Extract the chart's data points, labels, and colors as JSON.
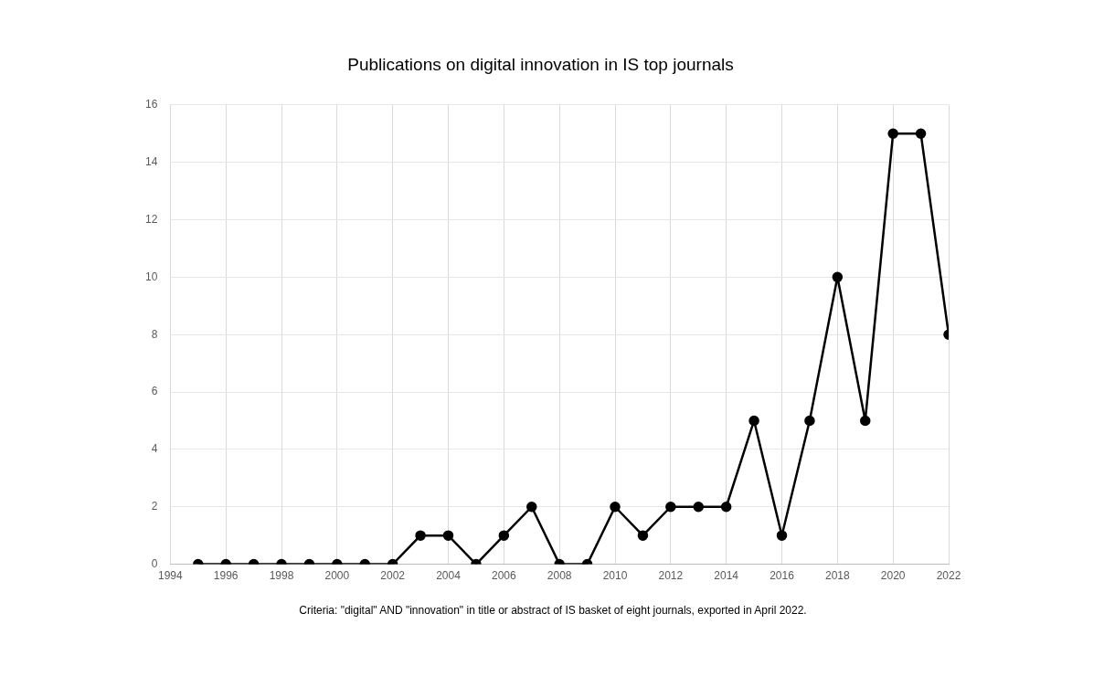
{
  "chart_data": {
    "type": "line",
    "title": "Publications on digital innovation in IS top journals",
    "x": [
      1995,
      1996,
      1997,
      1998,
      1999,
      2000,
      2001,
      2002,
      2003,
      2004,
      2005,
      2006,
      2007,
      2008,
      2009,
      2010,
      2011,
      2012,
      2013,
      2014,
      2015,
      2016,
      2017,
      2018,
      2019,
      2020,
      2021,
      2022
    ],
    "series": [
      {
        "color": "#000000",
        "values": [
          0,
          0,
          0,
          0,
          0,
          0,
          0,
          0,
          1,
          1,
          0,
          1,
          2,
          0,
          0,
          2,
          1,
          2,
          2,
          2,
          5,
          1,
          5,
          10,
          5,
          15,
          15,
          8
        ]
      }
    ],
    "xlim": [
      1994,
      2022
    ],
    "xticks": [
      1994,
      1996,
      1998,
      2000,
      2002,
      2004,
      2006,
      2008,
      2010,
      2012,
      2014,
      2016,
      2018,
      2020,
      2022
    ],
    "ylim": [
      0,
      16
    ],
    "yticks": [
      0,
      2,
      4,
      6,
      8,
      10,
      12,
      14,
      16
    ],
    "grid": true,
    "legend": false,
    "marker": "circle",
    "line_style": "solid",
    "annotations": [
      "Criteria: \"digital\" AND \"innovation\" in title or abstract of IS basket of eight journals, exported in April 2022."
    ]
  }
}
